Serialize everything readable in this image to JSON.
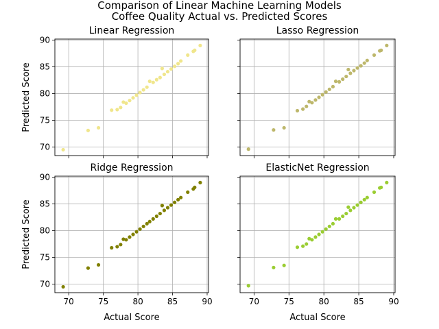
{
  "figure": {
    "title_line1": "Comparison of Linear Machine Learning Models",
    "title_line2": "Coffee Quality Actual vs. Predicted Scores"
  },
  "chart_data": [
    {
      "type": "scatter",
      "title": "Linear Regression",
      "xlabel": "",
      "ylabel": "Predicted Score",
      "color": "#f0e68c",
      "xlim": [
        68.0,
        90.2
      ],
      "ylim": [
        68.4,
        90.2
      ],
      "xticks": [
        70,
        75,
        80,
        85,
        90
      ],
      "yticks": [
        70,
        75,
        80,
        85,
        90
      ],
      "show_xticklabels": false,
      "show_yticklabels": true,
      "grid": true,
      "points": [
        {
          "x": 69.2,
          "y": 69.5
        },
        {
          "x": 72.8,
          "y": 73.1
        },
        {
          "x": 74.3,
          "y": 73.6
        },
        {
          "x": 76.2,
          "y": 76.9
        },
        {
          "x": 77.0,
          "y": 77.0
        },
        {
          "x": 77.5,
          "y": 77.4
        },
        {
          "x": 77.9,
          "y": 78.4
        },
        {
          "x": 78.3,
          "y": 78.2
        },
        {
          "x": 78.8,
          "y": 78.7
        },
        {
          "x": 79.3,
          "y": 79.2
        },
        {
          "x": 79.8,
          "y": 79.7
        },
        {
          "x": 80.3,
          "y": 80.2
        },
        {
          "x": 80.8,
          "y": 80.7
        },
        {
          "x": 81.3,
          "y": 81.2
        },
        {
          "x": 81.7,
          "y": 82.3
        },
        {
          "x": 82.2,
          "y": 82.1
        },
        {
          "x": 82.7,
          "y": 82.6
        },
        {
          "x": 83.2,
          "y": 83.0
        },
        {
          "x": 83.5,
          "y": 84.7
        },
        {
          "x": 83.8,
          "y": 83.6
        },
        {
          "x": 84.3,
          "y": 84.1
        },
        {
          "x": 84.8,
          "y": 84.6
        },
        {
          "x": 85.3,
          "y": 85.1
        },
        {
          "x": 85.8,
          "y": 85.6
        },
        {
          "x": 86.2,
          "y": 86.1
        },
        {
          "x": 87.2,
          "y": 87.2
        },
        {
          "x": 88.0,
          "y": 87.9
        },
        {
          "x": 88.2,
          "y": 88.1
        },
        {
          "x": 89.0,
          "y": 89.0
        }
      ]
    },
    {
      "type": "scatter",
      "title": "Lasso Regression",
      "xlabel": "",
      "ylabel": "",
      "color": "#bdb76b",
      "xlim": [
        68.0,
        90.2
      ],
      "ylim": [
        68.4,
        90.2
      ],
      "xticks": [
        70,
        75,
        80,
        85,
        90
      ],
      "yticks": [
        70,
        75,
        80,
        85,
        90
      ],
      "show_xticklabels": false,
      "show_yticklabels": false,
      "grid": true,
      "points": [
        {
          "x": 69.2,
          "y": 69.6
        },
        {
          "x": 72.8,
          "y": 73.2
        },
        {
          "x": 74.3,
          "y": 73.6
        },
        {
          "x": 76.2,
          "y": 76.8
        },
        {
          "x": 77.0,
          "y": 77.1
        },
        {
          "x": 77.5,
          "y": 77.6
        },
        {
          "x": 77.9,
          "y": 78.5
        },
        {
          "x": 78.3,
          "y": 78.3
        },
        {
          "x": 78.8,
          "y": 78.8
        },
        {
          "x": 79.3,
          "y": 79.3
        },
        {
          "x": 79.8,
          "y": 79.8
        },
        {
          "x": 80.3,
          "y": 80.3
        },
        {
          "x": 80.8,
          "y": 80.8
        },
        {
          "x": 81.3,
          "y": 81.3
        },
        {
          "x": 81.7,
          "y": 82.3
        },
        {
          "x": 82.2,
          "y": 82.2
        },
        {
          "x": 82.7,
          "y": 82.7
        },
        {
          "x": 83.2,
          "y": 83.2
        },
        {
          "x": 83.5,
          "y": 84.5
        },
        {
          "x": 83.8,
          "y": 83.8
        },
        {
          "x": 84.3,
          "y": 84.3
        },
        {
          "x": 84.8,
          "y": 84.8
        },
        {
          "x": 85.3,
          "y": 85.2
        },
        {
          "x": 85.8,
          "y": 85.7
        },
        {
          "x": 86.2,
          "y": 86.2
        },
        {
          "x": 87.2,
          "y": 87.2
        },
        {
          "x": 88.0,
          "y": 88.0
        },
        {
          "x": 88.2,
          "y": 88.1
        },
        {
          "x": 89.0,
          "y": 89.0
        }
      ]
    },
    {
      "type": "scatter",
      "title": "Ridge Regression",
      "xlabel": "Actual Score",
      "ylabel": "Predicted Score",
      "color": "#808000",
      "xlim": [
        68.0,
        90.2
      ],
      "ylim": [
        68.4,
        90.2
      ],
      "xticks": [
        70,
        75,
        80,
        85,
        90
      ],
      "yticks": [
        70,
        75,
        80,
        85,
        90
      ],
      "show_xticklabels": true,
      "show_yticklabels": true,
      "grid": true,
      "points": [
        {
          "x": 69.2,
          "y": 69.5
        },
        {
          "x": 72.8,
          "y": 73.0
        },
        {
          "x": 74.3,
          "y": 73.6
        },
        {
          "x": 76.2,
          "y": 76.8
        },
        {
          "x": 77.0,
          "y": 77.0
        },
        {
          "x": 77.5,
          "y": 77.4
        },
        {
          "x": 77.9,
          "y": 78.4
        },
        {
          "x": 78.3,
          "y": 78.3
        },
        {
          "x": 78.8,
          "y": 78.8
        },
        {
          "x": 79.3,
          "y": 79.3
        },
        {
          "x": 79.8,
          "y": 79.8
        },
        {
          "x": 80.3,
          "y": 80.3
        },
        {
          "x": 80.8,
          "y": 80.8
        },
        {
          "x": 81.3,
          "y": 81.3
        },
        {
          "x": 81.7,
          "y": 81.7
        },
        {
          "x": 82.2,
          "y": 82.2
        },
        {
          "x": 82.7,
          "y": 82.7
        },
        {
          "x": 83.2,
          "y": 83.2
        },
        {
          "x": 83.5,
          "y": 84.7
        },
        {
          "x": 83.8,
          "y": 83.8
        },
        {
          "x": 84.3,
          "y": 84.3
        },
        {
          "x": 84.8,
          "y": 84.8
        },
        {
          "x": 85.3,
          "y": 85.3
        },
        {
          "x": 85.8,
          "y": 85.8
        },
        {
          "x": 86.2,
          "y": 86.2
        },
        {
          "x": 87.2,
          "y": 87.2
        },
        {
          "x": 88.0,
          "y": 87.8
        },
        {
          "x": 88.2,
          "y": 88.1
        },
        {
          "x": 89.0,
          "y": 89.0
        }
      ]
    },
    {
      "type": "scatter",
      "title": "ElasticNet Regression",
      "xlabel": "Actual Score",
      "ylabel": "",
      "color": "#9acd32",
      "xlim": [
        68.0,
        90.2
      ],
      "ylim": [
        68.4,
        90.2
      ],
      "xticks": [
        70,
        75,
        80,
        85,
        90
      ],
      "yticks": [
        70,
        75,
        80,
        85,
        90
      ],
      "show_xticklabels": true,
      "show_yticklabels": false,
      "grid": true,
      "points": [
        {
          "x": 69.2,
          "y": 69.7
        },
        {
          "x": 72.8,
          "y": 73.1
        },
        {
          "x": 74.3,
          "y": 73.5
        },
        {
          "x": 76.2,
          "y": 76.9
        },
        {
          "x": 77.0,
          "y": 77.1
        },
        {
          "x": 77.5,
          "y": 77.5
        },
        {
          "x": 77.9,
          "y": 78.5
        },
        {
          "x": 78.3,
          "y": 78.3
        },
        {
          "x": 78.8,
          "y": 78.8
        },
        {
          "x": 79.3,
          "y": 79.3
        },
        {
          "x": 79.8,
          "y": 79.8
        },
        {
          "x": 80.3,
          "y": 80.3
        },
        {
          "x": 80.8,
          "y": 80.8
        },
        {
          "x": 81.3,
          "y": 81.3
        },
        {
          "x": 81.7,
          "y": 82.2
        },
        {
          "x": 82.2,
          "y": 82.2
        },
        {
          "x": 82.7,
          "y": 82.7
        },
        {
          "x": 83.2,
          "y": 83.2
        },
        {
          "x": 83.5,
          "y": 84.4
        },
        {
          "x": 83.8,
          "y": 83.8
        },
        {
          "x": 84.3,
          "y": 84.3
        },
        {
          "x": 84.8,
          "y": 84.8
        },
        {
          "x": 85.3,
          "y": 85.3
        },
        {
          "x": 85.8,
          "y": 85.8
        },
        {
          "x": 86.2,
          "y": 86.2
        },
        {
          "x": 87.2,
          "y": 87.2
        },
        {
          "x": 88.0,
          "y": 88.0
        },
        {
          "x": 88.2,
          "y": 88.1
        },
        {
          "x": 89.0,
          "y": 89.0
        }
      ]
    }
  ]
}
